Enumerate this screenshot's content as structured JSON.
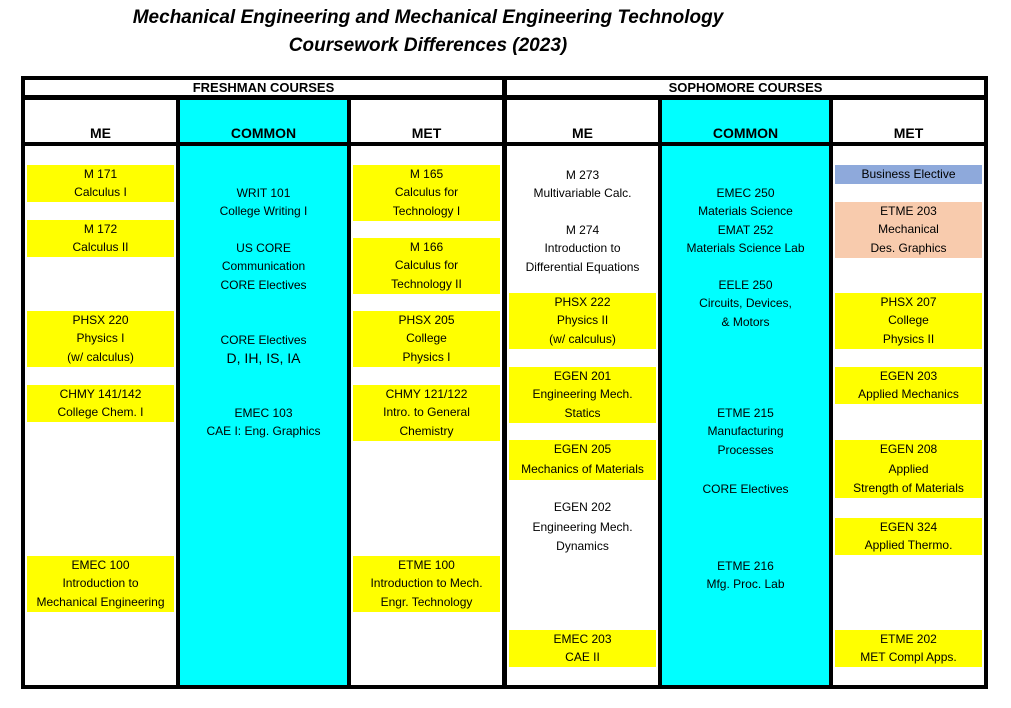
{
  "title": {
    "line1": "Mechanical Engineering and Mechanical Engineering Technology",
    "line2": "Coursework Differences (2023)"
  },
  "headers": {
    "freshman": "FRESHMAN COURSES",
    "sophomore": "SOPHOMORE COURSES"
  },
  "columns": {
    "fme": "ME",
    "fcommon": "COMMON",
    "fmet": "MET",
    "sme": "ME",
    "scommon": "COMMON",
    "smet": "MET"
  },
  "colors": {
    "yellow": "#ffff00",
    "cyan": "#00ffff",
    "blue": "#8ea9db",
    "peach": "#f8cbad"
  },
  "fme": {
    "c1": [
      "M 171",
      "Calculus I"
    ],
    "c2": [
      "M 172",
      "Calculus II"
    ],
    "c3": [
      "PHSX 220",
      "Physics I",
      "(w/ calculus)"
    ],
    "c4": [
      "CHMY 141/142",
      "College Chem. I"
    ],
    "c5": [
      "EMEC 100",
      "Introduction to",
      "Mechanical Engineering"
    ]
  },
  "fcommon": {
    "c1": [
      "WRIT 101",
      "College Writing I"
    ],
    "c2": [
      "US CORE",
      "Communication",
      "CORE Electives"
    ],
    "c3": [
      "CORE Electives",
      "D, IH, IS, IA"
    ],
    "c4": [
      "EMEC 103",
      "CAE I: Eng. Graphics"
    ]
  },
  "fmet": {
    "c1": [
      "M 165",
      "Calculus for",
      "Technology I"
    ],
    "c2": [
      "M 166",
      "Calculus for",
      "Technology II"
    ],
    "c3": [
      "PHSX 205",
      "College",
      "Physics I"
    ],
    "c4": [
      "CHMY 121/122",
      "Intro. to General",
      "Chemistry"
    ],
    "c5": [
      "ETME 100",
      "Introduction to Mech.",
      "Engr. Technology"
    ]
  },
  "sme": {
    "c1": [
      "M 273",
      "Multivariable Calc."
    ],
    "c2": [
      "M 274",
      "Introduction to",
      "Differential Equations"
    ],
    "c3": [
      "PHSX 222",
      "Physics II",
      "(w/ calculus)"
    ],
    "c4": [
      "EGEN 201",
      "Engineering Mech.",
      "Statics"
    ],
    "c5": [
      "EGEN 205",
      "Mechanics of Materials"
    ],
    "c6": [
      "EGEN 202",
      "Engineering Mech.",
      "Dynamics"
    ],
    "c7": [
      "EMEC 203",
      "CAE II"
    ]
  },
  "scommon": {
    "c1": [
      "EMEC 250",
      "Materials Science",
      "EMAT 252",
      "Materials Science Lab"
    ],
    "c2": [
      "EELE 250",
      "Circuits, Devices,",
      "& Motors"
    ],
    "c3": [
      "ETME 215",
      "Manufacturing",
      "Processes"
    ],
    "c4": [
      "CORE Electives"
    ],
    "c5": [
      "ETME 216",
      "Mfg. Proc. Lab"
    ]
  },
  "smet": {
    "c1": [
      "Business Elective"
    ],
    "c2": [
      "ETME 203",
      "Mechanical",
      "Des. Graphics"
    ],
    "c3": [
      "PHSX 207",
      "College",
      "Physics II"
    ],
    "c4": [
      "EGEN 203",
      "Applied Mechanics"
    ],
    "c5": [
      "EGEN 208",
      "Applied",
      "Strength of Materials"
    ],
    "c6": [
      "EGEN 324",
      "Applied Thermo."
    ],
    "c7": [
      "ETME 202",
      "MET Compl Apps."
    ]
  }
}
